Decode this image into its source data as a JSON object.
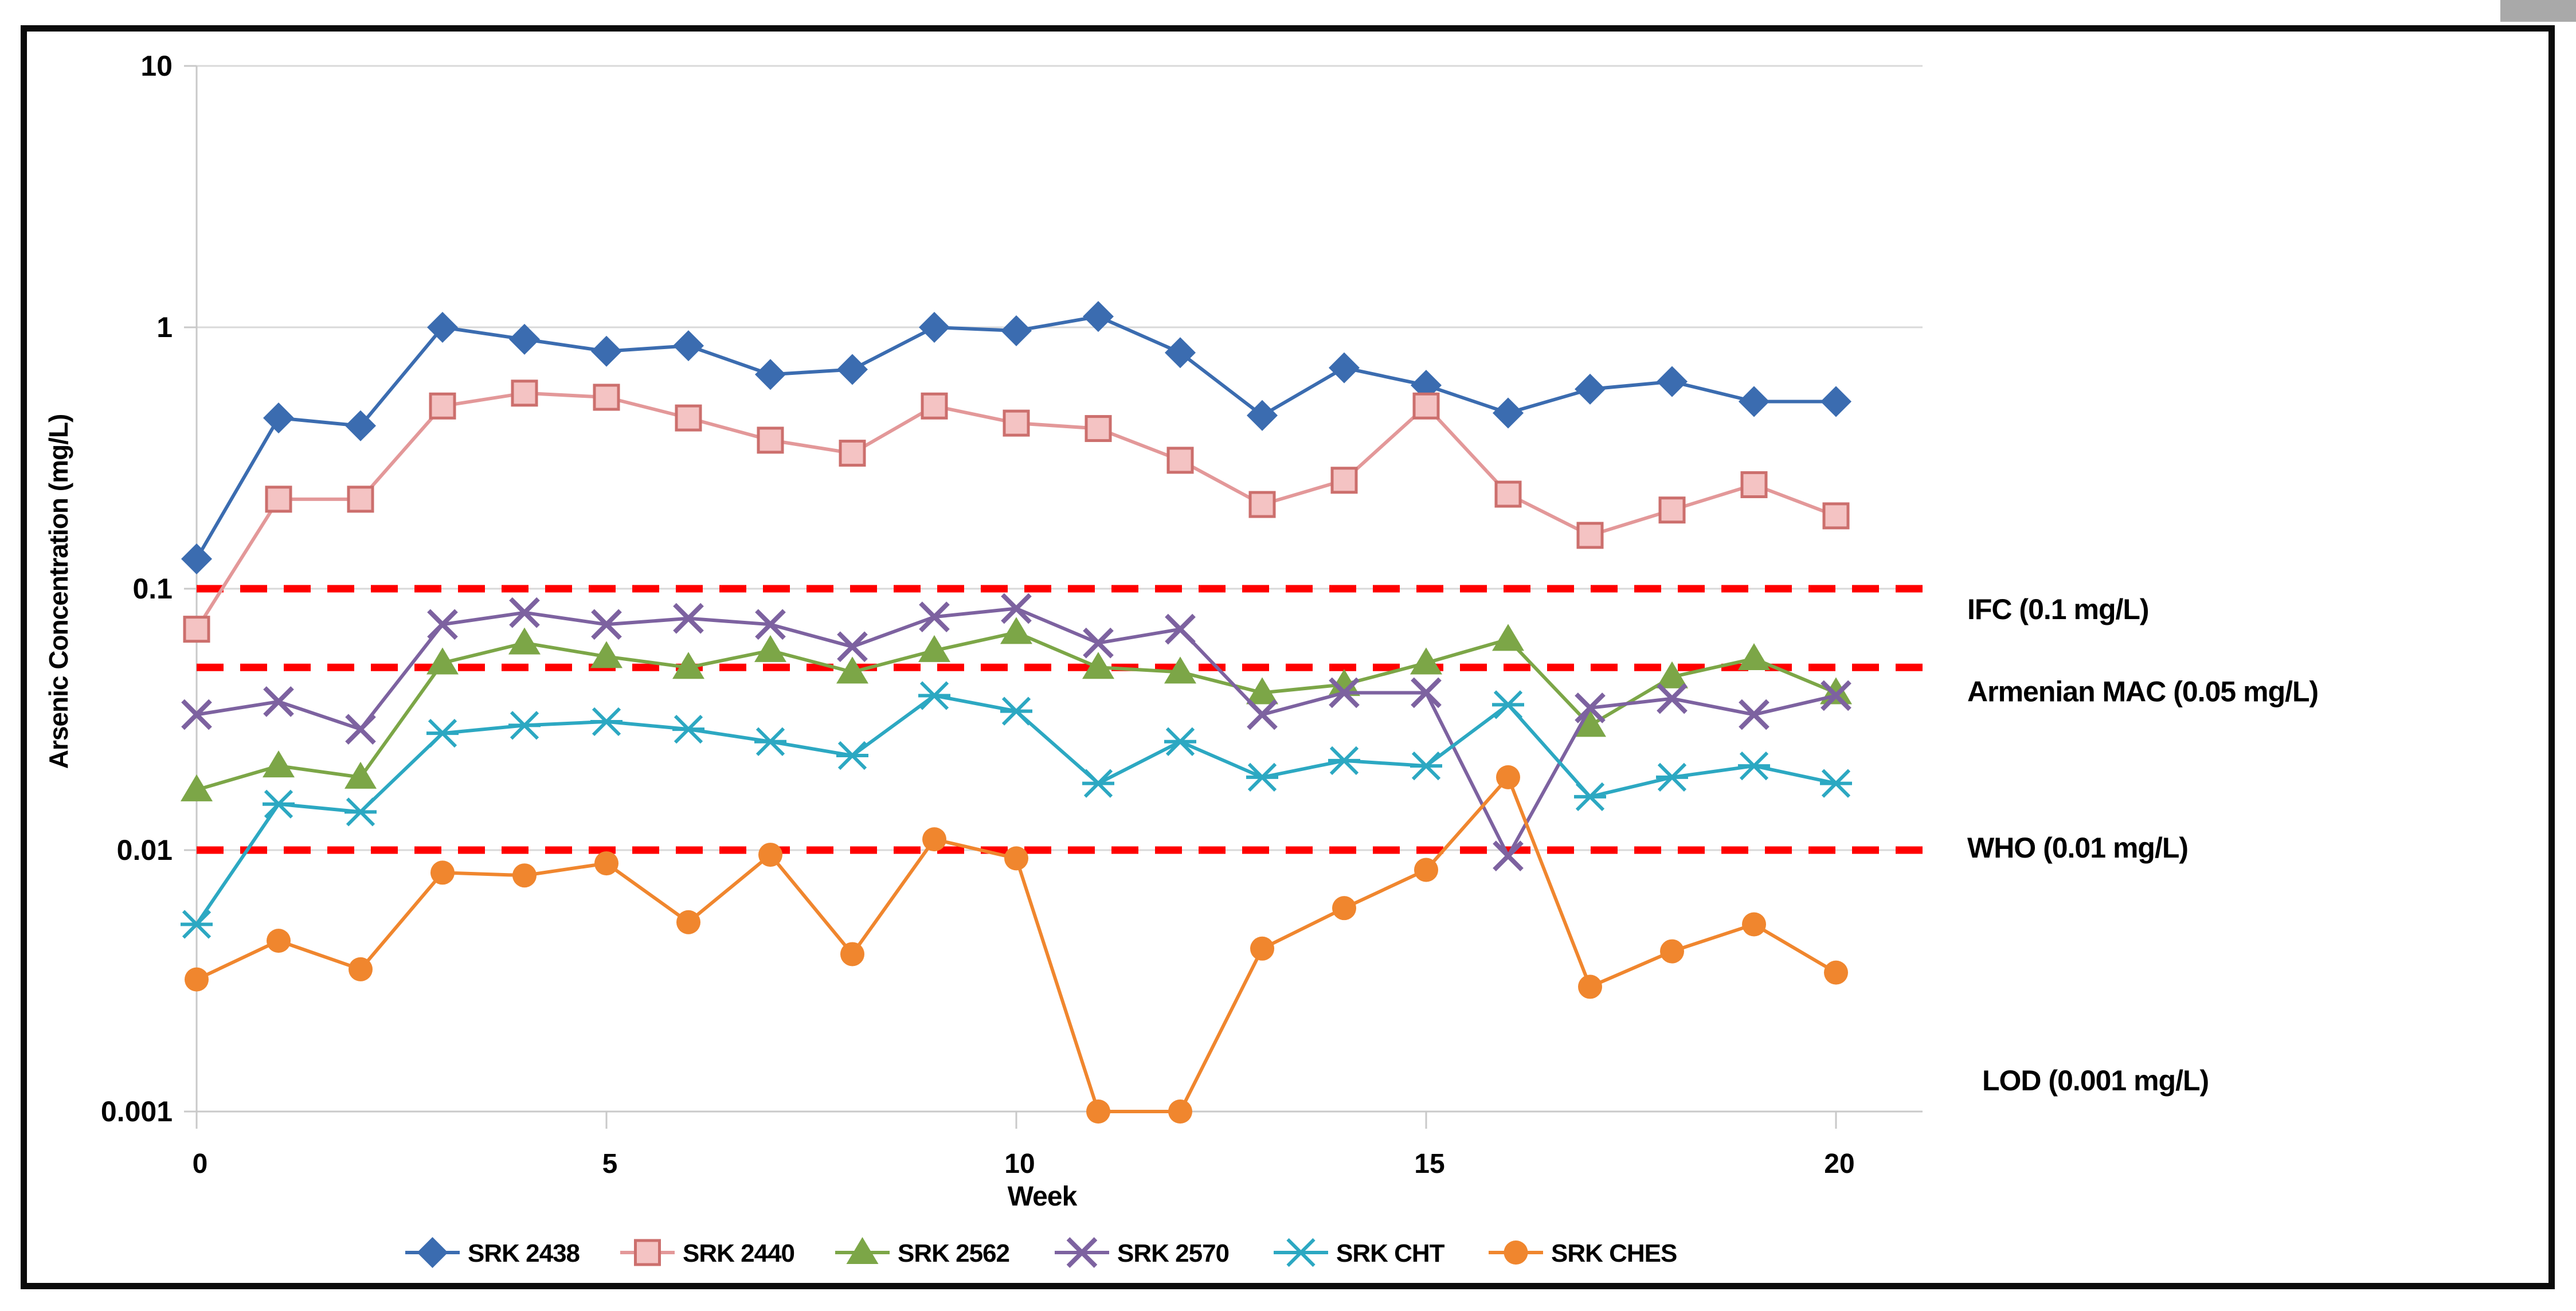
{
  "chart_data": {
    "type": "line",
    "title": "",
    "xlabel": "Week",
    "ylabel": "Arsenic Concentration (mg/L)",
    "y_scale": "log",
    "ylim": [
      0.001,
      10
    ],
    "grid": "horizontal",
    "legend_position": "bottom",
    "x": [
      0,
      1,
      2,
      3,
      4,
      5,
      6,
      7,
      8,
      9,
      10,
      11,
      12,
      13,
      14,
      15,
      16,
      17,
      18,
      19,
      20
    ],
    "x_ticks": [
      0,
      5,
      10,
      15,
      20
    ],
    "x_tick_labels": [
      "0",
      "5",
      "10",
      "15",
      "20"
    ],
    "y_ticks": [
      10,
      1,
      0.1,
      0.01,
      0.001
    ],
    "y_tick_labels": [
      "10",
      "1",
      "0.1",
      "0.01",
      "0.001"
    ],
    "series": [
      {
        "name": "SRK 2438",
        "marker": "diamond",
        "color": "#3b6cb0",
        "values": [
          0.13,
          0.45,
          0.42,
          1.0,
          0.9,
          0.81,
          0.85,
          0.66,
          0.69,
          1.0,
          0.97,
          1.1,
          0.8,
          0.46,
          0.7,
          0.6,
          0.47,
          0.58,
          0.62,
          0.52,
          0.52
        ]
      },
      {
        "name": "SRK 2440",
        "marker": "square",
        "color": "#e39899",
        "marker_fill": "#f4c3c3",
        "marker_stroke": "#cc6f6d",
        "values": [
          0.07,
          0.22,
          0.22,
          0.5,
          0.56,
          0.54,
          0.45,
          0.37,
          0.33,
          0.5,
          0.43,
          0.41,
          0.31,
          0.21,
          0.26,
          0.5,
          0.23,
          0.16,
          0.2,
          0.25,
          0.19
        ]
      },
      {
        "name": "SRK 2562",
        "marker": "triangle",
        "color": "#7ca647",
        "values": [
          0.017,
          0.021,
          0.019,
          0.052,
          0.062,
          0.055,
          0.05,
          0.058,
          0.048,
          0.058,
          0.068,
          0.05,
          0.048,
          0.04,
          0.043,
          0.052,
          0.064,
          0.03,
          0.046,
          0.054,
          0.04
        ]
      },
      {
        "name": "SRK 2570",
        "marker": "x",
        "color": "#7d62a0",
        "values": [
          0.033,
          0.037,
          0.029,
          0.073,
          0.081,
          0.073,
          0.077,
          0.073,
          0.06,
          0.078,
          0.084,
          0.062,
          0.07,
          0.033,
          0.04,
          0.04,
          0.0095,
          0.035,
          0.038,
          0.033,
          0.039
        ]
      },
      {
        "name": "SRK CHT",
        "marker": "asterisk",
        "color": "#2ca8c2",
        "values": [
          0.0052,
          0.015,
          0.014,
          0.028,
          0.03,
          0.031,
          0.029,
          0.026,
          0.023,
          0.039,
          0.034,
          0.018,
          0.026,
          0.019,
          0.022,
          0.021,
          0.036,
          0.016,
          0.019,
          0.021,
          0.018
        ]
      },
      {
        "name": "SRK CHES",
        "marker": "circle",
        "color": "#f0862e",
        "values": [
          0.0032,
          0.0045,
          0.0035,
          0.0082,
          0.008,
          0.0089,
          0.0053,
          0.0096,
          0.004,
          0.011,
          0.0093,
          0.001,
          0.001,
          0.0042,
          0.006,
          0.0084,
          0.019,
          0.003,
          0.0041,
          0.0052,
          0.0034
        ]
      }
    ],
    "reference_lines": [
      {
        "label": "IFC (0.1 mg/L)",
        "value": 0.1,
        "color": "#ff0000",
        "dashed": true
      },
      {
        "label": "Armenian MAC (0.05 mg/L)",
        "value": 0.05,
        "color": "#ff0000",
        "dashed": true
      },
      {
        "label": "WHO (0.01 mg/L)",
        "value": 0.01,
        "color": "#ff0000",
        "dashed": true
      },
      {
        "label": "LOD (0.001 mg/L)",
        "value": 0.001,
        "color": "#000000",
        "dashed": false
      }
    ],
    "colors": {
      "gridline": "#d9d9d9",
      "axis": "#c9c9c9",
      "reference": "#ff0000",
      "text": "#000000"
    }
  }
}
